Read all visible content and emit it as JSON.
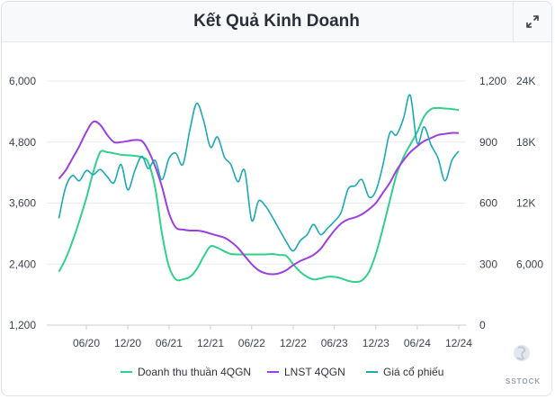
{
  "header": {
    "title": "Kết Quả Kinh Doanh"
  },
  "watermark": "SSTOCK",
  "chart_data": {
    "type": "line",
    "title": "Kết Quả Kinh Doanh",
    "axes": {
      "y_left": {
        "ticks": [
          "1,200",
          "2,400",
          "3,600",
          "4,800",
          "6,000"
        ],
        "ylim": [
          1200,
          6000
        ],
        "series": "Doanh thu thuần 4QGN"
      },
      "y_mid": {
        "ticks": [
          "0",
          "300",
          "600",
          "900",
          "1,200"
        ],
        "ylim": [
          0,
          1200
        ],
        "series": "LNST 4QGN"
      },
      "y_right": {
        "ticks": [
          "6,000",
          "12K",
          "18K",
          "24K"
        ],
        "ylim": [
          0,
          24000
        ],
        "series": "Giá cổ phiếu"
      },
      "x": {
        "ticks": [
          "06/20",
          "12/20",
          "06/21",
          "12/21",
          "06/22",
          "12/22",
          "06/23",
          "12/23",
          "06/24",
          "12/24"
        ]
      }
    },
    "grid": "horizontal",
    "legend_position": "bottom",
    "series": [
      {
        "name": "Doanh thu thuần 4QGN",
        "color": "#2fd18b",
        "x": [
          "2020-02",
          "2020-03",
          "2020-04",
          "2020-05",
          "2020-06",
          "2020-07",
          "2020-08",
          "2020-09",
          "2020-10",
          "2020-11",
          "2020-12",
          "2021-01",
          "2021-02",
          "2021-03",
          "2021-04",
          "2021-05",
          "2021-06",
          "2021-07",
          "2021-08",
          "2021-09",
          "2021-10",
          "2021-11",
          "2021-12",
          "2022-01",
          "2022-02",
          "2022-03",
          "2022-04",
          "2022-05",
          "2022-06",
          "2022-07",
          "2022-08",
          "2022-09",
          "2022-10",
          "2022-11",
          "2022-12",
          "2023-01",
          "2023-02",
          "2023-03",
          "2023-04",
          "2023-05",
          "2023-06",
          "2023-07",
          "2023-08",
          "2023-09",
          "2023-10",
          "2023-11",
          "2023-12",
          "2024-01",
          "2024-02",
          "2024-03",
          "2024-04",
          "2024-05",
          "2024-06",
          "2024-07",
          "2024-08",
          "2024-09",
          "2024-10",
          "2024-11",
          "2024-12"
        ],
        "values": [
          2250,
          2500,
          2850,
          3250,
          3700,
          4200,
          4600,
          4600,
          4580,
          4550,
          4540,
          4530,
          4500,
          4400,
          3900,
          3000,
          2350,
          2100,
          2100,
          2150,
          2300,
          2550,
          2750,
          2720,
          2650,
          2600,
          2590,
          2590,
          2590,
          2590,
          2590,
          2600,
          2580,
          2560,
          2400,
          2250,
          2150,
          2100,
          2120,
          2150,
          2150,
          2120,
          2070,
          2050,
          2080,
          2250,
          2600,
          3100,
          3650,
          4150,
          4500,
          4750,
          5000,
          5300,
          5450,
          5470,
          5460,
          5450,
          5430
        ]
      },
      {
        "name": "LNST 4QGN",
        "color": "#9b3fe0",
        "x": [
          "2020-02",
          "2020-03",
          "2020-04",
          "2020-05",
          "2020-06",
          "2020-07",
          "2020-08",
          "2020-09",
          "2020-10",
          "2020-11",
          "2020-12",
          "2021-01",
          "2021-02",
          "2021-03",
          "2021-04",
          "2021-05",
          "2021-06",
          "2021-07",
          "2021-08",
          "2021-09",
          "2021-10",
          "2021-11",
          "2021-12",
          "2022-01",
          "2022-02",
          "2022-03",
          "2022-04",
          "2022-05",
          "2022-06",
          "2022-07",
          "2022-08",
          "2022-09",
          "2022-10",
          "2022-11",
          "2022-12",
          "2023-01",
          "2023-02",
          "2023-03",
          "2023-04",
          "2023-05",
          "2023-06",
          "2023-07",
          "2023-08",
          "2023-09",
          "2023-10",
          "2023-11",
          "2023-12",
          "2024-01",
          "2024-02",
          "2024-03",
          "2024-04",
          "2024-05",
          "2024-06",
          "2024-07",
          "2024-08",
          "2024-09",
          "2024-10",
          "2024-11",
          "2024-12"
        ],
        "values": [
          720,
          760,
          820,
          880,
          950,
          1000,
          985,
          935,
          900,
          900,
          905,
          910,
          905,
          860,
          780,
          680,
          550,
          480,
          470,
          465,
          465,
          460,
          450,
          440,
          430,
          410,
          380,
          340,
          300,
          270,
          255,
          250,
          255,
          270,
          295,
          315,
          330,
          345,
          375,
          420,
          465,
          500,
          520,
          530,
          545,
          570,
          600,
          650,
          700,
          760,
          810,
          850,
          880,
          905,
          920,
          935,
          940,
          945,
          945
        ]
      },
      {
        "name": "Giá cổ phiếu",
        "color": "#1aa9b5",
        "x": [
          "2020-02",
          "2020-03",
          "2020-04",
          "2020-05",
          "2020-06",
          "2020-07",
          "2020-08",
          "2020-09",
          "2020-10",
          "2020-11",
          "2020-12",
          "2021-01",
          "2021-02",
          "2021-03",
          "2021-04",
          "2021-05",
          "2021-06",
          "2021-07",
          "2021-08",
          "2021-09",
          "2021-10",
          "2021-11",
          "2021-12",
          "2022-01",
          "2022-02",
          "2022-03",
          "2022-04",
          "2022-05",
          "2022-06",
          "2022-07",
          "2022-08",
          "2022-09",
          "2022-10",
          "2022-11",
          "2022-12",
          "2023-01",
          "2023-02",
          "2023-03",
          "2023-04",
          "2023-05",
          "2023-06",
          "2023-07",
          "2023-08",
          "2023-09",
          "2023-10",
          "2023-11",
          "2023-12",
          "2024-01",
          "2024-02",
          "2024-03",
          "2024-04",
          "2024-05",
          "2024-06",
          "2024-07",
          "2024-08",
          "2024-09",
          "2024-10",
          "2024-11",
          "2024-12"
        ],
        "values": [
          10500,
          13500,
          14700,
          14200,
          15200,
          14800,
          15300,
          14600,
          14000,
          15800,
          13300,
          15200,
          16600,
          15400,
          16200,
          14300,
          16400,
          16900,
          15800,
          19200,
          21800,
          20100,
          17500,
          18500,
          16500,
          15800,
          14100,
          15200,
          10300,
          12200,
          11700,
          10600,
          9400,
          8200,
          7300,
          8300,
          8900,
          9900,
          8900,
          9500,
          10200,
          11100,
          13400,
          13700,
          14300,
          12600,
          13200,
          15700,
          18900,
          18700,
          20300,
          22600,
          17900,
          19500,
          17700,
          16400,
          14200,
          16200,
          17100
        ]
      }
    ]
  },
  "legend": {
    "items": [
      {
        "label": "Doanh thu thuần 4QGN",
        "color": "#2fd18b"
      },
      {
        "label": "LNST 4QGN",
        "color": "#9b3fe0"
      },
      {
        "label": "Giá cổ phiếu",
        "color": "#1aa9b5"
      }
    ]
  }
}
